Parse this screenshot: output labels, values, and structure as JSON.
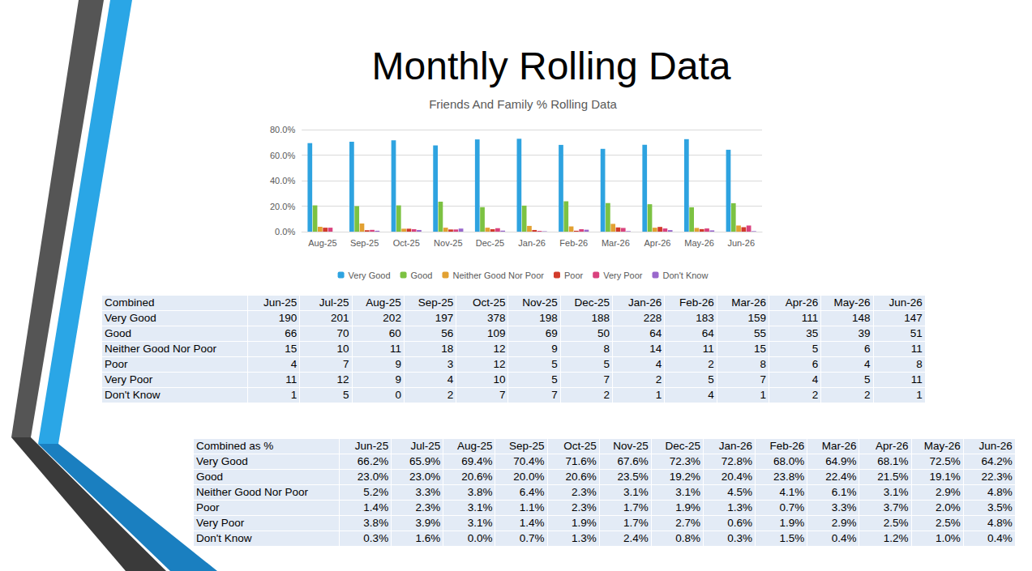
{
  "slide_title": "Monthly Rolling Data",
  "chart_data": {
    "type": "bar",
    "title": "Friends And Family % Rolling Data",
    "categories": [
      "Aug-25",
      "Sep-25",
      "Oct-25",
      "Nov-25",
      "Dec-25",
      "Jan-26",
      "Feb-26",
      "Mar-26",
      "Apr-26",
      "May-26",
      "Jun-26"
    ],
    "series": [
      {
        "name": "Very Good",
        "color": "#2ea3e0",
        "values": [
          69.4,
          70.4,
          71.6,
          67.6,
          72.3,
          72.8,
          68.0,
          64.9,
          68.1,
          72.5,
          64.2
        ]
      },
      {
        "name": "Good",
        "color": "#7cc242",
        "values": [
          20.6,
          20.0,
          20.6,
          23.5,
          19.2,
          20.4,
          23.8,
          22.4,
          21.5,
          19.1,
          22.3
        ]
      },
      {
        "name": "Neither Good Nor Poor",
        "color": "#e2a132",
        "values": [
          3.8,
          6.4,
          2.3,
          3.1,
          3.1,
          4.5,
          4.1,
          6.1,
          3.1,
          2.9,
          4.8
        ]
      },
      {
        "name": "Poor",
        "color": "#d23b2b",
        "values": [
          3.1,
          1.1,
          2.3,
          1.7,
          1.9,
          1.3,
          0.7,
          3.3,
          3.7,
          2.0,
          3.5
        ]
      },
      {
        "name": "Very Poor",
        "color": "#d9427e",
        "values": [
          3.1,
          1.4,
          1.9,
          1.7,
          2.7,
          0.6,
          1.9,
          2.9,
          2.5,
          2.5,
          4.8
        ]
      },
      {
        "name": "Don't Know",
        "color": "#9a68cc",
        "values": [
          0.0,
          0.7,
          1.3,
          2.4,
          0.8,
          0.3,
          1.5,
          0.4,
          1.2,
          1.0,
          0.4
        ]
      }
    ],
    "ylim": [
      0,
      80
    ],
    "yticks": [
      {
        "value": 0,
        "label": "0.0%"
      },
      {
        "value": 20,
        "label": "20.0%"
      },
      {
        "value": 40,
        "label": "40.0%"
      },
      {
        "value": 60,
        "label": "60.0%"
      },
      {
        "value": 80,
        "label": "80.0%"
      }
    ],
    "grid": true,
    "legend": "bottom"
  },
  "tables": [
    {
      "header": [
        "Combined",
        "Jun-25",
        "Jul-25",
        "Aug-25",
        "Sep-25",
        "Oct-25",
        "Nov-25",
        "Dec-25",
        "Jan-26",
        "Feb-26",
        "Mar-26",
        "Apr-26",
        "May-26",
        "Jun-26"
      ],
      "rows": [
        [
          "Very Good",
          190,
          201,
          202,
          197,
          378,
          198,
          188,
          228,
          183,
          159,
          111,
          148,
          147
        ],
        [
          "Good",
          66,
          70,
          60,
          56,
          109,
          69,
          50,
          64,
          64,
          55,
          35,
          39,
          51
        ],
        [
          "Neither Good Nor Poor",
          15,
          10,
          11,
          18,
          12,
          9,
          8,
          14,
          11,
          15,
          5,
          6,
          11
        ],
        [
          "Poor",
          4,
          7,
          9,
          3,
          12,
          5,
          5,
          4,
          2,
          8,
          6,
          4,
          8
        ],
        [
          "Very Poor",
          11,
          12,
          9,
          4,
          10,
          5,
          7,
          2,
          5,
          7,
          4,
          5,
          11
        ],
        [
          "Don't Know",
          1,
          5,
          0,
          2,
          7,
          7,
          2,
          1,
          4,
          1,
          2,
          2,
          1
        ]
      ]
    },
    {
      "header": [
        "Combined as %",
        "Jun-25",
        "Jul-25",
        "Aug-25",
        "Sep-25",
        "Oct-25",
        "Nov-25",
        "Dec-25",
        "Jan-26",
        "Feb-26",
        "Mar-26",
        "Apr-26",
        "May-26",
        "Jun-26"
      ],
      "rows": [
        [
          "Very Good",
          "66.2%",
          "65.9%",
          "69.4%",
          "70.4%",
          "71.6%",
          "67.6%",
          "72.3%",
          "72.8%",
          "68.0%",
          "64.9%",
          "68.1%",
          "72.5%",
          "64.2%"
        ],
        [
          "Good",
          "23.0%",
          "23.0%",
          "20.6%",
          "20.0%",
          "20.6%",
          "23.5%",
          "19.2%",
          "20.4%",
          "23.8%",
          "22.4%",
          "21.5%",
          "19.1%",
          "22.3%"
        ],
        [
          "Neither Good Nor Poor",
          "5.2%",
          "3.3%",
          "3.8%",
          "6.4%",
          "2.3%",
          "3.1%",
          "3.1%",
          "4.5%",
          "4.1%",
          "6.1%",
          "3.1%",
          "2.9%",
          "4.8%"
        ],
        [
          "Poor",
          "1.4%",
          "2.3%",
          "3.1%",
          "1.1%",
          "2.3%",
          "1.7%",
          "1.9%",
          "1.3%",
          "0.7%",
          "3.3%",
          "3.7%",
          "2.0%",
          "3.5%"
        ],
        [
          "Very Poor",
          "3.8%",
          "3.9%",
          "3.1%",
          "1.4%",
          "1.9%",
          "1.7%",
          "2.7%",
          "0.6%",
          "1.9%",
          "2.9%",
          "2.5%",
          "2.5%",
          "4.8%"
        ],
        [
          "Don't Know",
          "0.3%",
          "1.6%",
          "0.0%",
          "0.7%",
          "1.3%",
          "2.4%",
          "0.8%",
          "0.3%",
          "1.5%",
          "0.4%",
          "1.2%",
          "1.0%",
          "0.4%"
        ]
      ]
    }
  ]
}
